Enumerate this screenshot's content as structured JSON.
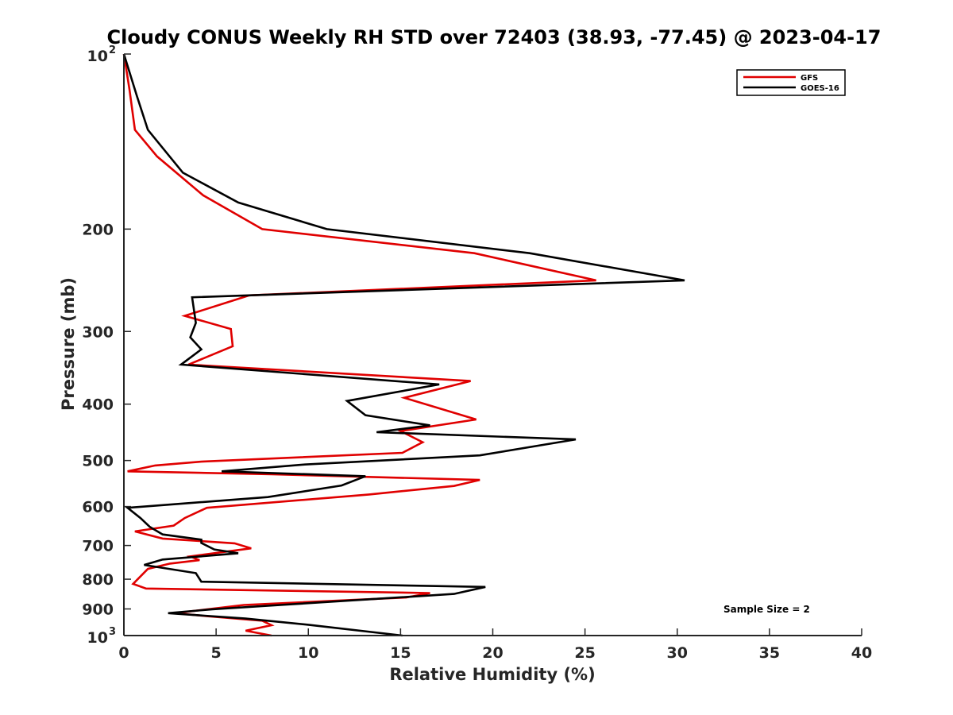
{
  "chart_data": {
    "type": "line",
    "title": "Cloudy CONUS Weekly RH STD over 72403 (38.93, -77.45) @ 2023-04-17",
    "xlabel": "Relative Humidity (%)",
    "ylabel": "Pressure (mb)",
    "xlim": [
      0,
      40
    ],
    "ylim": [
      100,
      1000
    ],
    "y_scale": "log",
    "y_reversed": true,
    "grid": false,
    "legend_position": "top-right",
    "annotation": "Sample Size = 2",
    "x_ticks": [
      "0",
      "5",
      "10",
      "15",
      "20",
      "25",
      "30",
      "35",
      "40"
    ],
    "y_ticks": [
      {
        "value": 100,
        "label": "10",
        "exp": "2"
      },
      {
        "value": 200,
        "label": "200",
        "exp": ""
      },
      {
        "value": 300,
        "label": "300",
        "exp": ""
      },
      {
        "value": 400,
        "label": "400",
        "exp": ""
      },
      {
        "value": 500,
        "label": "500",
        "exp": ""
      },
      {
        "value": 600,
        "label": "600",
        "exp": ""
      },
      {
        "value": 700,
        "label": "700",
        "exp": ""
      },
      {
        "value": 800,
        "label": "800",
        "exp": ""
      },
      {
        "value": 900,
        "label": "900",
        "exp": ""
      },
      {
        "value": 1000,
        "label": "10",
        "exp": "3"
      }
    ],
    "series": [
      {
        "name": "GFS",
        "color": "#e00000",
        "points": [
          [
            0.0,
            100
          ],
          [
            0.3,
            115
          ],
          [
            0.6,
            135
          ],
          [
            1.8,
            150
          ],
          [
            4.3,
            175
          ],
          [
            7.5,
            200
          ],
          [
            19.0,
            220
          ],
          [
            25.6,
            245
          ],
          [
            6.8,
            260
          ],
          [
            3.3,
            282
          ],
          [
            5.8,
            297
          ],
          [
            5.9,
            318
          ],
          [
            3.5,
            342
          ],
          [
            18.8,
            365
          ],
          [
            15.2,
            390
          ],
          [
            19.1,
            425
          ],
          [
            15.0,
            445
          ],
          [
            16.2,
            465
          ],
          [
            15.1,
            485
          ],
          [
            4.3,
            502
          ],
          [
            1.7,
            510
          ],
          [
            0.2,
            522
          ],
          [
            8.0,
            528
          ],
          [
            19.3,
            540
          ],
          [
            17.9,
            553
          ],
          [
            13.3,
            572
          ],
          [
            4.5,
            603
          ],
          [
            3.3,
            628
          ],
          [
            2.7,
            647
          ],
          [
            0.6,
            662
          ],
          [
            2.1,
            681
          ],
          [
            6.0,
            694
          ],
          [
            6.9,
            708
          ],
          [
            3.6,
            731
          ],
          [
            4.1,
            742
          ],
          [
            2.5,
            752
          ],
          [
            1.3,
            768
          ],
          [
            0.5,
            815
          ],
          [
            1.2,
            830
          ],
          [
            16.6,
            845
          ],
          [
            15.3,
            860
          ],
          [
            6.5,
            886
          ],
          [
            2.8,
            915
          ],
          [
            4.5,
            926
          ],
          [
            7.5,
            943
          ],
          [
            8.0,
            960
          ],
          [
            6.6,
            981
          ],
          [
            8.0,
            1000
          ]
        ]
      },
      {
        "name": "GOES-16",
        "color": "#000000",
        "points": [
          [
            0.0,
            100
          ],
          [
            0.7,
            118
          ],
          [
            1.3,
            135
          ],
          [
            3.2,
            160
          ],
          [
            6.2,
            180
          ],
          [
            11.0,
            200
          ],
          [
            22.0,
            220
          ],
          [
            30.4,
            245
          ],
          [
            3.7,
            262
          ],
          [
            3.9,
            290
          ],
          [
            3.6,
            307
          ],
          [
            4.2,
            322
          ],
          [
            3.1,
            342
          ],
          [
            17.1,
            370
          ],
          [
            12.1,
            395
          ],
          [
            13.1,
            418
          ],
          [
            16.6,
            435
          ],
          [
            13.7,
            447
          ],
          [
            24.5,
            460
          ],
          [
            19.3,
            490
          ],
          [
            9.8,
            508
          ],
          [
            5.3,
            522
          ],
          [
            13.1,
            532
          ],
          [
            11.8,
            552
          ],
          [
            7.8,
            578
          ],
          [
            0.2,
            603
          ],
          [
            0.9,
            628
          ],
          [
            1.4,
            650
          ],
          [
            2.1,
            670
          ],
          [
            4.2,
            684
          ],
          [
            4.2,
            693
          ],
          [
            4.9,
            711
          ],
          [
            6.2,
            722
          ],
          [
            2.1,
            740
          ],
          [
            1.1,
            756
          ],
          [
            3.9,
            781
          ],
          [
            4.2,
            808
          ],
          [
            19.6,
            825
          ],
          [
            17.9,
            848
          ],
          [
            4.8,
            901
          ],
          [
            2.4,
            915
          ],
          [
            6.6,
            935
          ],
          [
            10.0,
            958
          ],
          [
            15.1,
            1000
          ]
        ]
      }
    ]
  }
}
